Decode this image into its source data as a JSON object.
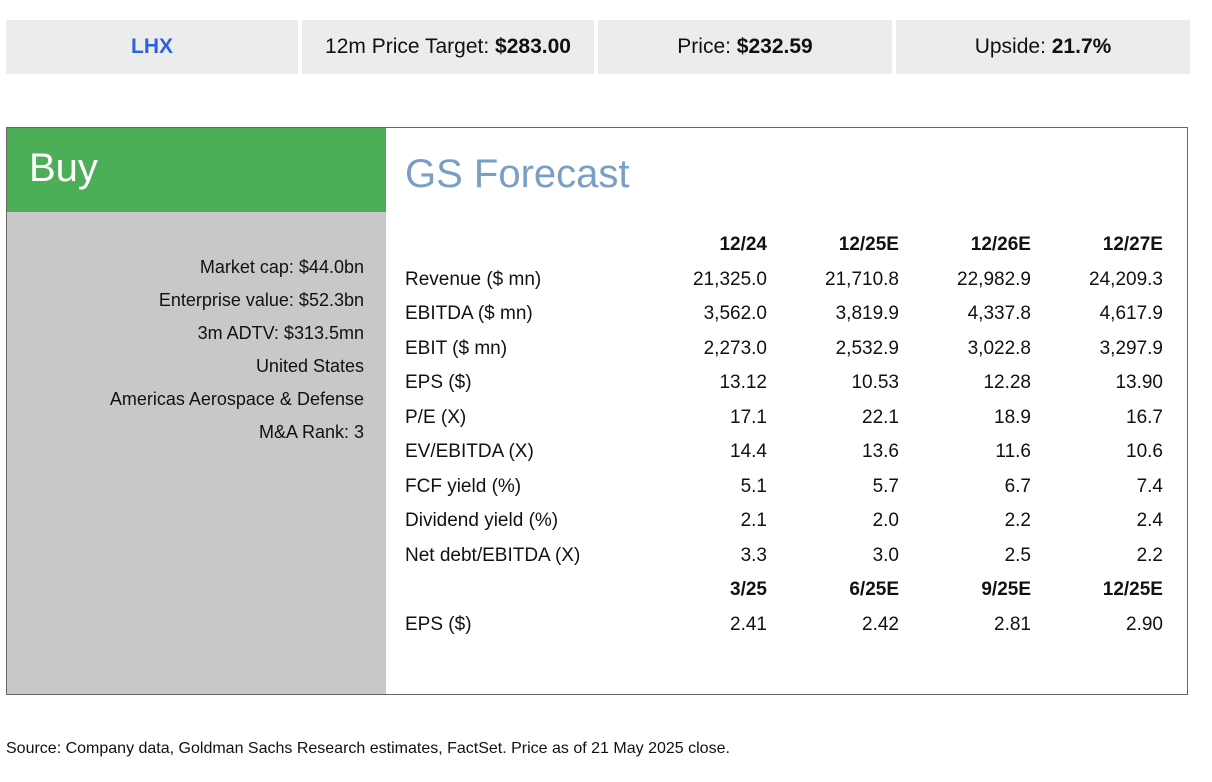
{
  "header": {
    "ticker": "LHX",
    "target_label": "12m Price Target: ",
    "target_value": "$283.00",
    "price_label": "Price: ",
    "price_value": "$232.59",
    "upside_label": "Upside: ",
    "upside_value": "21.7%"
  },
  "rating": "Buy",
  "stats": [
    "Market cap: $44.0bn",
    "Enterprise value: $52.3bn",
    "3m ADTV: $313.5mn",
    "United States",
    "Americas Aerospace & Defense",
    "M&A Rank: 3"
  ],
  "forecast": {
    "title": "GS Forecast",
    "annual_headers": [
      "12/24",
      "12/25E",
      "12/26E",
      "12/27E"
    ],
    "annual_rows": [
      {
        "label": "Revenue ($ mn)",
        "values": [
          "21,325.0",
          "21,710.8",
          "22,982.9",
          "24,209.3"
        ]
      },
      {
        "label": "EBITDA ($ mn)",
        "values": [
          "3,562.0",
          "3,819.9",
          "4,337.8",
          "4,617.9"
        ]
      },
      {
        "label": "EBIT ($ mn)",
        "values": [
          "2,273.0",
          "2,532.9",
          "3,022.8",
          "3,297.9"
        ]
      },
      {
        "label": "EPS ($)",
        "values": [
          "13.12",
          "10.53",
          "12.28",
          "13.90"
        ]
      },
      {
        "label": "P/E (X)",
        "values": [
          "17.1",
          "22.1",
          "18.9",
          "16.7"
        ]
      },
      {
        "label": "EV/EBITDA (X)",
        "values": [
          "14.4",
          "13.6",
          "11.6",
          "10.6"
        ]
      },
      {
        "label": "FCF yield (%)",
        "values": [
          "5.1",
          "5.7",
          "6.7",
          "7.4"
        ]
      },
      {
        "label": "Dividend yield (%)",
        "values": [
          "2.1",
          "2.0",
          "2.2",
          "2.4"
        ]
      },
      {
        "label": "Net debt/EBITDA (X)",
        "values": [
          "3.3",
          "3.0",
          "2.5",
          "2.2"
        ]
      }
    ],
    "quarterly_headers": [
      "3/25",
      "6/25E",
      "9/25E",
      "12/25E"
    ],
    "quarterly_rows": [
      {
        "label": "EPS ($)",
        "values": [
          "2.41",
          "2.42",
          "2.81",
          "2.90"
        ]
      }
    ]
  },
  "source": "Source: Company data, Goldman Sachs Research estimates, FactSet. Price as of 21 May 2025 close."
}
